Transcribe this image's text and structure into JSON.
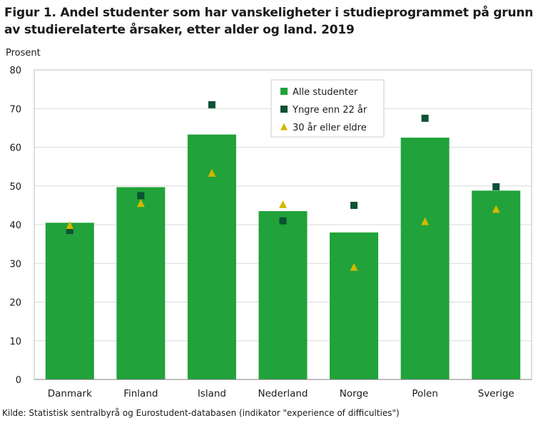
{
  "title": "Figur 1. Andel studenter som har vanskeligheter i studieprogrammet på grunn av studierelaterte årsaker, etter alder og land. 2019",
  "source": "Kilde: Statistisk sentralbyrå og Eurostudent-databasen (indikator \"experience of difficulties\")",
  "colors": {
    "bar": "#21a23a",
    "square": "#0c5233",
    "triangle": "#d3b700",
    "grid": "#d9d9d9",
    "border": "#bfbfbf"
  },
  "chart_data": {
    "type": "bar",
    "ylabel": "Prosent",
    "xlabel": "",
    "ylim": [
      0,
      80
    ],
    "yticks": [
      0,
      10,
      20,
      30,
      40,
      50,
      60,
      70,
      80
    ],
    "grid": true,
    "legend_position": "top-center",
    "categories": [
      "Danmark",
      "Finland",
      "Island",
      "Nederland",
      "Norge",
      "Polen",
      "Sverige"
    ],
    "series": [
      {
        "name": "Alle studenter",
        "marker": "bar",
        "values": [
          40.5,
          49.7,
          63.3,
          43.5,
          38.0,
          62.5,
          48.8
        ]
      },
      {
        "name": "Yngre enn 22 år",
        "marker": "square",
        "values": [
          38.5,
          47.5,
          71.0,
          41.0,
          45.0,
          67.5,
          49.8
        ]
      },
      {
        "name": "30 år eller eldre",
        "marker": "triangle",
        "values": [
          39.8,
          45.5,
          53.3,
          45.2,
          29.0,
          40.8,
          44.0
        ]
      }
    ]
  }
}
